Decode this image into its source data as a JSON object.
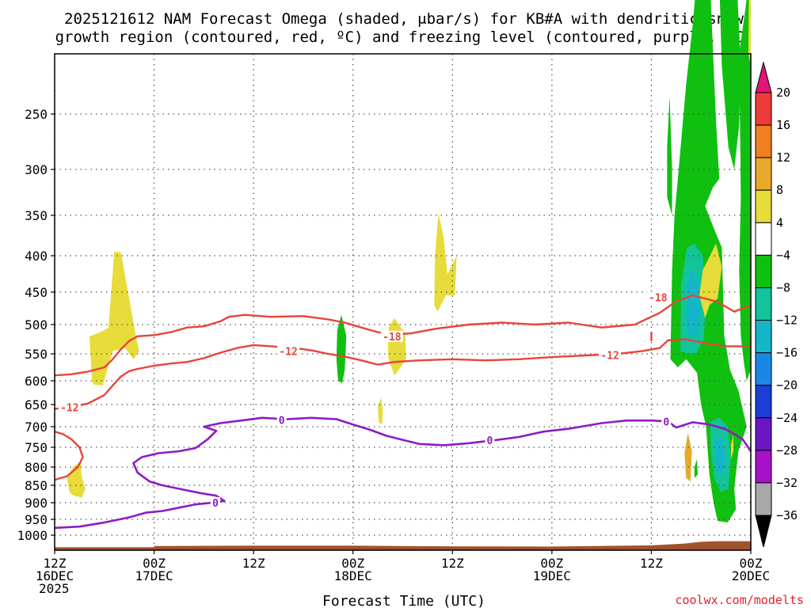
{
  "chart_data": {
    "type": "time-height cross section",
    "title_line1": "2025121612 NAM Forecast Omega (shaded, μbar/s) for KB#A with dendritic snow",
    "title_line2": "growth region (contoured, red, ºC) and freezing level (contoured, purple, ºC)",
    "xlabel": "Forecast Time (UTC)",
    "credit": "coolwx.com/modelts",
    "y_axis": {
      "unit": "hPa",
      "ticks": [
        250,
        300,
        350,
        400,
        450,
        500,
        550,
        600,
        650,
        700,
        750,
        800,
        850,
        900,
        950,
        1000
      ]
    },
    "x_axis": {
      "start_hour": 0,
      "end_hour": 84,
      "ticks": [
        {
          "hour": 0,
          "line1": "12Z",
          "line2": "16DEC",
          "line3": "2025"
        },
        {
          "hour": 12,
          "line1": "00Z",
          "line2": "17DEC",
          "line3": ""
        },
        {
          "hour": 24,
          "line1": "12Z",
          "line2": "",
          "line3": ""
        },
        {
          "hour": 36,
          "line1": "00Z",
          "line2": "18DEC",
          "line3": ""
        },
        {
          "hour": 48,
          "line1": "12Z",
          "line2": "",
          "line3": ""
        },
        {
          "hour": 60,
          "line1": "00Z",
          "line2": "19DEC",
          "line3": ""
        },
        {
          "hour": 72,
          "line1": "12Z",
          "line2": "",
          "line3": ""
        },
        {
          "hour": 84,
          "line1": "00Z",
          "line2": "20DEC",
          "line3": ""
        }
      ]
    },
    "colorbar": {
      "labels": [
        "20",
        "16",
        "12",
        "8",
        "4",
        "−4",
        "−8",
        "−12",
        "−16",
        "−20",
        "−24",
        "−28",
        "−32",
        "−36"
      ],
      "colors": [
        "#e0157a",
        "#f03a3a",
        "#ef7f1f",
        "#e8a82c",
        "#e7dc3a",
        "#ffffff",
        "#10c010",
        "#13c39a",
        "#13b6c8",
        "#1a87e8",
        "#1b3fd6",
        "#6a16c2",
        "#a512c8",
        "#a8a8a8",
        "#000000"
      ]
    },
    "contours": {
      "minus18_label": "-18",
      "minus12_label": "-12",
      "freezing_label": "0",
      "minus18_line": [
        [
          0,
          590
        ],
        [
          2,
          588
        ],
        [
          4,
          583
        ],
        [
          6,
          575
        ],
        [
          7,
          560
        ],
        [
          8,
          542
        ],
        [
          9,
          528
        ],
        [
          10,
          520
        ],
        [
          12,
          518
        ],
        [
          14,
          513
        ],
        [
          16,
          505
        ],
        [
          18,
          503
        ],
        [
          20,
          495
        ],
        [
          21,
          488
        ],
        [
          23,
          485
        ],
        [
          26,
          488
        ],
        [
          30,
          487
        ],
        [
          33,
          492
        ],
        [
          35,
          497
        ],
        [
          37,
          505
        ],
        [
          39,
          513
        ],
        [
          41,
          517
        ],
        [
          43,
          515
        ],
        [
          46,
          507
        ],
        [
          50,
          500
        ],
        [
          54,
          497
        ],
        [
          58,
          500
        ],
        [
          62,
          497
        ],
        [
          66,
          505
        ],
        [
          70,
          500
        ],
        [
          73,
          482
        ],
        [
          75,
          464
        ],
        [
          77,
          455
        ],
        [
          80,
          465
        ],
        [
          82,
          480
        ],
        [
          84,
          470
        ]
      ],
      "minus12_line": [
        [
          0,
          660
        ],
        [
          2,
          655
        ],
        [
          4,
          648
        ],
        [
          6,
          630
        ],
        [
          7,
          610
        ],
        [
          8,
          592
        ],
        [
          9,
          582
        ],
        [
          10,
          578
        ],
        [
          12,
          572
        ],
        [
          14,
          568
        ],
        [
          16,
          565
        ],
        [
          18,
          558
        ],
        [
          20,
          548
        ],
        [
          22,
          540
        ],
        [
          24,
          535
        ],
        [
          27,
          538
        ],
        [
          29,
          540
        ],
        [
          31,
          544
        ],
        [
          33,
          550
        ],
        [
          35,
          555
        ],
        [
          37,
          562
        ],
        [
          39,
          570
        ],
        [
          41,
          565
        ],
        [
          44,
          562
        ],
        [
          48,
          560
        ],
        [
          52,
          562
        ],
        [
          56,
          560
        ],
        [
          60,
          556
        ],
        [
          64,
          553
        ],
        [
          68,
          550
        ],
        [
          71,
          545
        ],
        [
          73,
          540
        ],
        [
          74,
          527
        ],
        [
          76,
          525
        ],
        [
          79,
          533
        ],
        [
          81,
          537
        ],
        [
          84,
          537
        ]
      ],
      "minus12_lower": [
        [
          0,
          712
        ],
        [
          1,
          718
        ],
        [
          2,
          730
        ],
        [
          3,
          750
        ],
        [
          3.4,
          775
        ],
        [
          2.8,
          800
        ],
        [
          1.5,
          825
        ],
        [
          0,
          835
        ]
      ],
      "freezing_line": [
        [
          0,
          977
        ],
        [
          3,
          973
        ],
        [
          6,
          960
        ],
        [
          9,
          944
        ],
        [
          11,
          930
        ],
        [
          13,
          925
        ],
        [
          15,
          915
        ],
        [
          17,
          905
        ],
        [
          19,
          900
        ],
        [
          20.5,
          895
        ],
        [
          19.5,
          880
        ],
        [
          17.5,
          872
        ],
        [
          15,
          860
        ],
        [
          13,
          850
        ],
        [
          11.5,
          840
        ],
        [
          10,
          815
        ],
        [
          9.5,
          790
        ],
        [
          10.5,
          775
        ],
        [
          12.5,
          765
        ],
        [
          15,
          760
        ],
        [
          17,
          752
        ],
        [
          18.5,
          730
        ],
        [
          19.5,
          710
        ],
        [
          18,
          700
        ],
        [
          20,
          692
        ],
        [
          23,
          685
        ],
        [
          25,
          680
        ],
        [
          28,
          683
        ],
        [
          31,
          680
        ],
        [
          34,
          683
        ],
        [
          36,
          695
        ],
        [
          38,
          707
        ],
        [
          40,
          722
        ],
        [
          42,
          732
        ],
        [
          44,
          742
        ],
        [
          47,
          745
        ],
        [
          50,
          740
        ],
        [
          53,
          733
        ],
        [
          56,
          725
        ],
        [
          59,
          712
        ],
        [
          62,
          705
        ],
        [
          66,
          692
        ],
        [
          69,
          686
        ],
        [
          72,
          686
        ],
        [
          74,
          688
        ],
        [
          75,
          702
        ],
        [
          77,
          690
        ],
        [
          79,
          695
        ],
        [
          81,
          706
        ],
        [
          83,
          730
        ],
        [
          84,
          760
        ]
      ]
    }
  }
}
